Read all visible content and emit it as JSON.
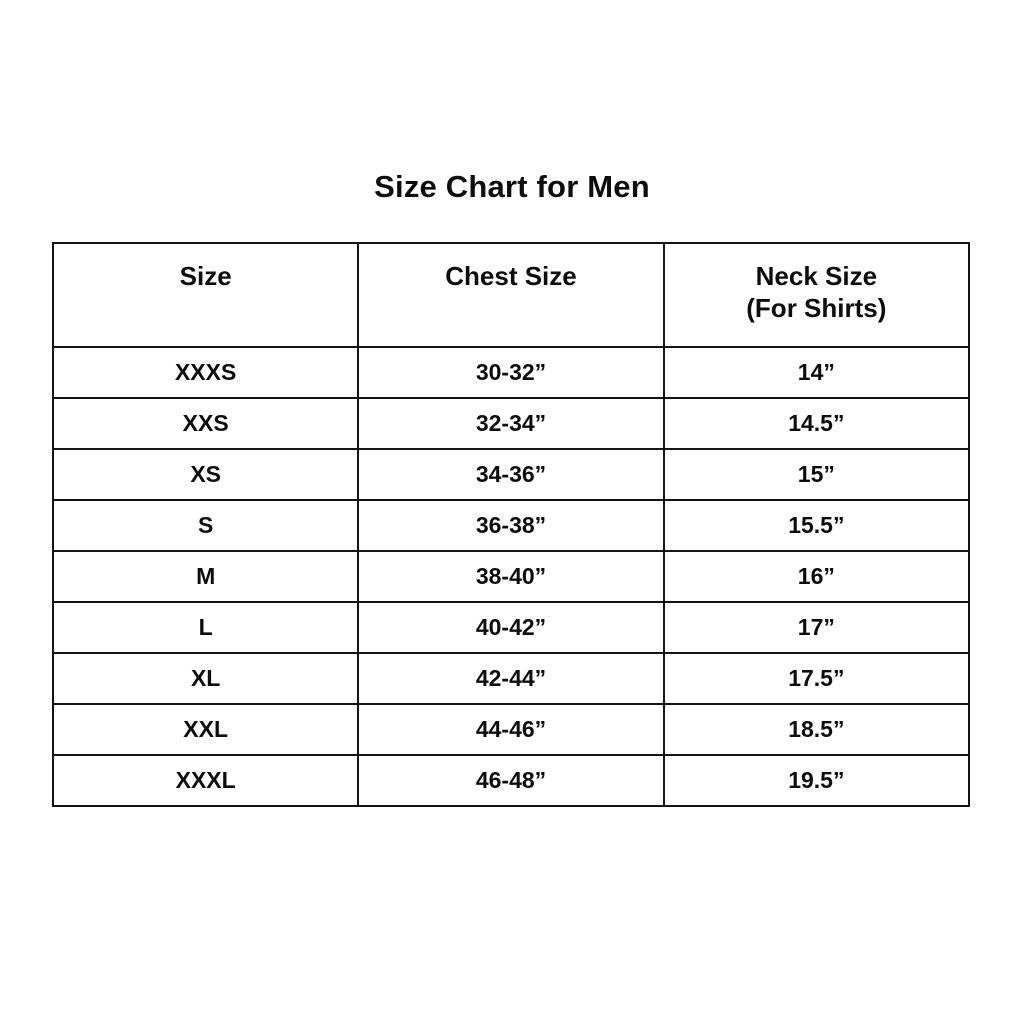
{
  "title": "Size Chart for Men",
  "table": {
    "headers": {
      "size": "Size",
      "chest": "Chest Size",
      "neck_line1": "Neck Size",
      "neck_line2": "(For Shirts)"
    },
    "rows": [
      {
        "size": "XXXS",
        "chest": "30-32”",
        "neck": "14”"
      },
      {
        "size": "XXS",
        "chest": "32-34”",
        "neck": "14.5”"
      },
      {
        "size": "XS",
        "chest": "34-36”",
        "neck": "15”"
      },
      {
        "size": "S",
        "chest": "36-38”",
        "neck": "15.5”"
      },
      {
        "size": "M",
        "chest": "38-40”",
        "neck": "16”"
      },
      {
        "size": "L",
        "chest": "40-42”",
        "neck": "17”"
      },
      {
        "size": "XL",
        "chest": "42-44”",
        "neck": "17.5”"
      },
      {
        "size": "XXL",
        "chest": "44-46”",
        "neck": "18.5”"
      },
      {
        "size": "XXXL",
        "chest": "46-48”",
        "neck": "19.5”"
      }
    ]
  },
  "colors": {
    "background": "#ffffff",
    "text": "#0d0d0d",
    "border": "#141414"
  },
  "chart_data": {
    "type": "table",
    "title": "Size Chart for Men",
    "columns": [
      "Size",
      "Chest Size",
      "Neck Size (For Shirts)"
    ],
    "rows": [
      [
        "XXXS",
        "30-32”",
        "14”"
      ],
      [
        "XXS",
        "32-34”",
        "14.5”"
      ],
      [
        "XS",
        "34-36”",
        "15”"
      ],
      [
        "S",
        "36-38”",
        "15.5”"
      ],
      [
        "M",
        "38-40”",
        "16”"
      ],
      [
        "L",
        "40-42”",
        "17”"
      ],
      [
        "XL",
        "42-44”",
        "17.5”"
      ],
      [
        "XXL",
        "44-46”",
        "18.5”"
      ],
      [
        "XXXL",
        "46-48”",
        "19.5”"
      ]
    ]
  }
}
